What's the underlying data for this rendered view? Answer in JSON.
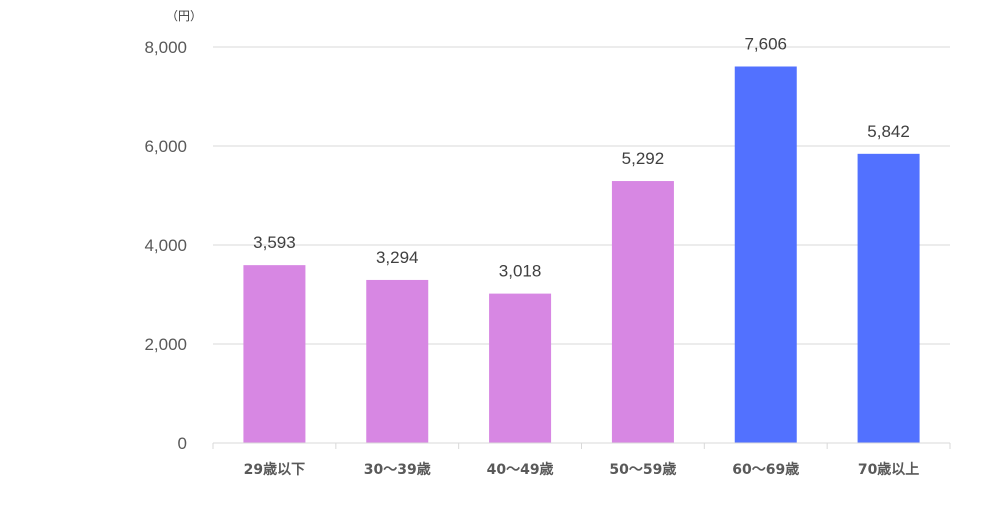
{
  "chart_data": {
    "type": "bar",
    "title": "",
    "xlabel": "",
    "ylabel": "",
    "y_unit": "（円）",
    "ylim": [
      0,
      8000
    ],
    "y_ticks": [
      "0",
      "2,000",
      "4,000",
      "6,000",
      "8,000"
    ],
    "y_tick_values": [
      0,
      2000,
      4000,
      6000,
      8000
    ],
    "grid": true,
    "legend": "none",
    "categories": [
      "29歳以下",
      "30～39歳",
      "40～49歳",
      "50～59歳",
      "60～69歳",
      "70歳以上"
    ],
    "values": [
      3593,
      3294,
      3018,
      5292,
      7606,
      5842
    ],
    "data_labels": [
      "3,593",
      "3,294",
      "3,018",
      "5,292",
      "7,606",
      "5,842"
    ],
    "bar_colors": [
      "#d787e3",
      "#d787e3",
      "#d787e3",
      "#d787e3",
      "#5271ff",
      "#5271ff"
    ]
  }
}
